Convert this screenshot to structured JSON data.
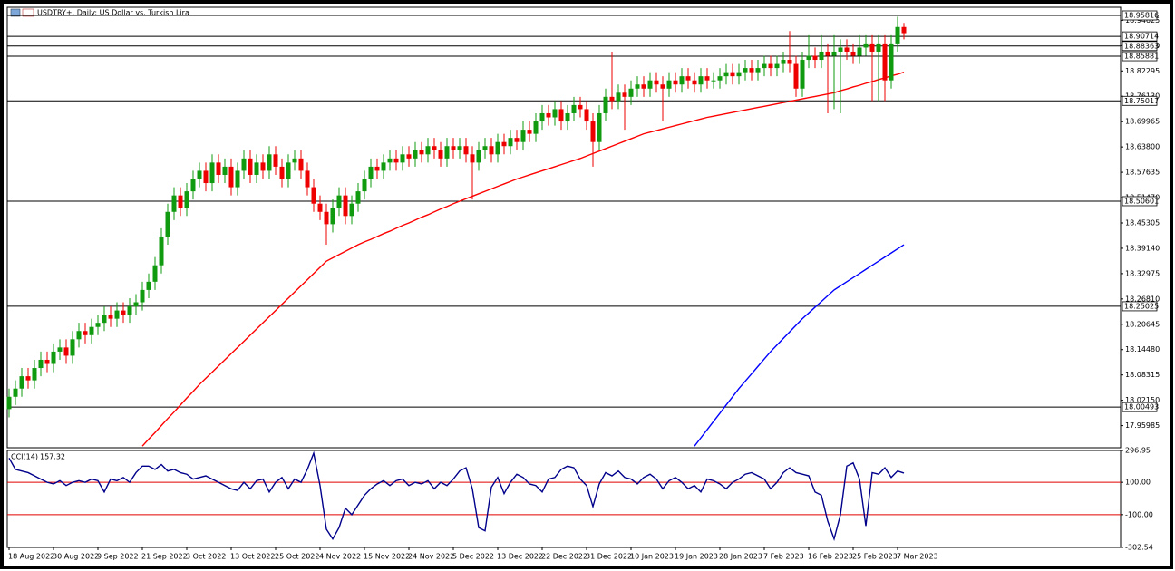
{
  "chart_data": [
    {
      "type": "candlestick",
      "title": "USDTRY+, Daily: US Dollar vs. Turkish Lira",
      "categories": [
        "18 Aug 2022",
        null,
        null,
        null,
        null,
        null,
        null,
        "30 Aug 2022",
        null,
        null,
        null,
        null,
        null,
        null,
        "9 Sep 2022",
        null,
        null,
        null,
        null,
        null,
        null,
        "21 Sep 2022",
        null,
        null,
        null,
        null,
        null,
        null,
        "3 Oct 2022",
        null,
        null,
        null,
        null,
        null,
        null,
        "13 Oct 2022",
        null,
        null,
        null,
        null,
        null,
        null,
        "25 Oct 2022",
        null,
        null,
        null,
        null,
        null,
        null,
        "4 Nov 2022",
        null,
        null,
        null,
        null,
        null,
        null,
        "15 Nov 2022",
        null,
        null,
        null,
        null,
        null,
        null,
        "24 Nov 2022",
        null,
        null,
        null,
        null,
        null,
        null,
        "5 Dec 2022",
        null,
        null,
        null,
        null,
        null,
        null,
        "13 Dec 2022",
        null,
        null,
        null,
        null,
        null,
        null,
        "22 Dec 2022",
        null,
        null,
        null,
        null,
        null,
        null,
        "31 Dec 2022",
        null,
        null,
        null,
        null,
        null,
        null,
        "10 Jan 2023",
        null,
        null,
        null,
        null,
        null,
        null,
        "19 Jan 2023",
        null,
        null,
        null,
        null,
        null,
        null,
        "28 Jan 2023",
        null,
        null,
        null,
        null,
        null,
        null,
        "7 Feb 2023",
        null,
        null,
        null,
        null,
        null,
        null,
        "16 Feb 2023",
        null,
        null,
        null,
        null,
        null,
        null,
        "25 Feb 2023",
        null,
        null,
        null,
        null,
        null,
        null,
        "7 Mar 2023",
        null
      ],
      "open": [
        18.0,
        18.03,
        18.05,
        18.08,
        18.07,
        18.1,
        18.12,
        18.11,
        18.14,
        18.15,
        18.13,
        18.17,
        18.19,
        18.18,
        18.2,
        18.21,
        18.23,
        18.22,
        18.24,
        18.23,
        18.25,
        18.26,
        18.29,
        18.31,
        18.35,
        18.42,
        18.48,
        18.52,
        18.49,
        18.53,
        18.56,
        18.58,
        18.55,
        18.6,
        18.57,
        18.59,
        18.54,
        18.58,
        18.61,
        18.57,
        18.6,
        18.58,
        18.62,
        18.59,
        18.56,
        18.6,
        18.61,
        18.58,
        18.54,
        18.5,
        18.48,
        18.45,
        18.49,
        18.52,
        18.47,
        18.5,
        18.53,
        18.56,
        18.59,
        18.58,
        18.6,
        18.61,
        18.6,
        18.62,
        18.61,
        18.63,
        18.62,
        18.64,
        18.63,
        18.61,
        18.64,
        18.63,
        18.64,
        18.62,
        18.6,
        18.63,
        18.64,
        18.62,
        18.65,
        18.64,
        18.66,
        18.65,
        18.68,
        18.67,
        18.7,
        18.72,
        18.71,
        18.73,
        18.7,
        18.72,
        18.74,
        18.73,
        18.7,
        18.65,
        18.72,
        18.76,
        18.75,
        18.77,
        18.76,
        18.78,
        18.79,
        18.78,
        18.8,
        18.79,
        18.78,
        18.8,
        18.79,
        18.81,
        18.8,
        18.79,
        18.81,
        18.8,
        18.8,
        18.81,
        18.82,
        18.81,
        18.82,
        18.83,
        18.82,
        18.83,
        18.84,
        18.83,
        18.84,
        18.85,
        18.84,
        18.78,
        18.85,
        18.86,
        18.85,
        18.87,
        18.86,
        18.87,
        18.88,
        18.87,
        18.86,
        18.88,
        18.89,
        18.87,
        18.89,
        18.8,
        18.89,
        18.93
      ],
      "high": [
        18.05,
        18.07,
        18.1,
        18.1,
        18.12,
        18.14,
        18.14,
        18.16,
        18.17,
        18.17,
        18.19,
        18.21,
        18.21,
        18.22,
        18.23,
        18.25,
        18.25,
        18.26,
        18.26,
        18.27,
        18.28,
        18.31,
        18.33,
        18.37,
        18.44,
        18.5,
        18.54,
        18.54,
        18.55,
        18.58,
        18.6,
        18.6,
        18.62,
        18.62,
        18.61,
        18.61,
        18.6,
        18.63,
        18.63,
        18.62,
        18.62,
        18.64,
        18.64,
        18.61,
        18.62,
        18.63,
        18.63,
        18.6,
        18.56,
        18.52,
        18.5,
        18.51,
        18.54,
        18.54,
        18.52,
        18.55,
        18.58,
        18.61,
        18.61,
        18.62,
        18.63,
        18.63,
        18.64,
        18.64,
        18.65,
        18.65,
        18.66,
        18.66,
        18.65,
        18.66,
        18.66,
        18.66,
        18.66,
        18.64,
        18.65,
        18.66,
        18.66,
        18.67,
        18.67,
        18.68,
        18.68,
        18.7,
        18.7,
        18.72,
        18.74,
        18.74,
        18.75,
        18.75,
        18.74,
        18.76,
        18.76,
        18.75,
        18.72,
        18.74,
        18.78,
        18.87,
        18.79,
        18.79,
        18.8,
        18.81,
        18.81,
        18.82,
        18.82,
        18.81,
        18.82,
        18.82,
        18.83,
        18.83,
        18.82,
        18.83,
        18.83,
        18.82,
        18.83,
        18.84,
        18.84,
        18.84,
        18.85,
        18.85,
        18.85,
        18.86,
        18.86,
        18.86,
        18.87,
        18.92,
        18.86,
        18.87,
        18.91,
        18.88,
        18.91,
        18.89,
        18.91,
        18.9,
        18.9,
        18.89,
        18.91,
        18.91,
        18.91,
        18.91,
        18.91,
        18.91,
        18.955,
        18.94
      ],
      "low": [
        17.98,
        18.01,
        18.03,
        18.05,
        18.05,
        18.08,
        18.09,
        18.09,
        18.12,
        18.11,
        18.11,
        18.15,
        18.16,
        18.16,
        18.18,
        18.19,
        18.2,
        18.2,
        18.21,
        18.21,
        18.23,
        18.24,
        18.27,
        18.29,
        18.33,
        18.4,
        18.46,
        18.47,
        18.47,
        18.51,
        18.54,
        18.53,
        18.53,
        18.55,
        18.55,
        18.52,
        18.52,
        18.56,
        18.55,
        18.55,
        18.56,
        18.56,
        18.57,
        18.54,
        18.54,
        18.58,
        18.56,
        18.52,
        18.48,
        18.46,
        18.4,
        18.43,
        18.47,
        18.45,
        18.45,
        18.48,
        18.51,
        18.54,
        18.56,
        18.56,
        18.58,
        18.58,
        18.58,
        18.59,
        18.59,
        18.6,
        18.6,
        18.61,
        18.59,
        18.59,
        18.61,
        18.61,
        18.6,
        18.51,
        18.58,
        18.61,
        18.6,
        18.6,
        18.62,
        18.62,
        18.63,
        18.63,
        18.65,
        18.65,
        18.68,
        18.69,
        18.69,
        18.68,
        18.68,
        18.7,
        18.71,
        18.68,
        18.59,
        18.63,
        18.7,
        18.73,
        18.73,
        18.68,
        18.74,
        18.76,
        18.76,
        18.76,
        18.77,
        18.7,
        18.76,
        18.77,
        18.77,
        18.78,
        18.77,
        18.77,
        18.78,
        18.78,
        18.78,
        18.79,
        18.79,
        18.79,
        18.8,
        18.8,
        18.8,
        18.81,
        18.81,
        18.81,
        18.82,
        18.82,
        18.76,
        18.76,
        18.83,
        18.83,
        18.83,
        18.72,
        18.73,
        18.72,
        18.85,
        18.84,
        18.84,
        18.86,
        18.75,
        18.75,
        18.75,
        18.78,
        18.87,
        18.9
      ],
      "close": [
        18.03,
        18.05,
        18.08,
        18.07,
        18.1,
        18.12,
        18.11,
        18.14,
        18.15,
        18.13,
        18.17,
        18.19,
        18.18,
        18.2,
        18.21,
        18.23,
        18.22,
        18.24,
        18.23,
        18.25,
        18.26,
        18.29,
        18.31,
        18.35,
        18.42,
        18.48,
        18.52,
        18.49,
        18.53,
        18.56,
        18.58,
        18.55,
        18.6,
        18.57,
        18.59,
        18.54,
        18.58,
        18.61,
        18.57,
        18.6,
        18.58,
        18.62,
        18.59,
        18.56,
        18.6,
        18.61,
        18.58,
        18.54,
        18.5,
        18.48,
        18.45,
        18.49,
        18.52,
        18.47,
        18.5,
        18.53,
        18.56,
        18.59,
        18.58,
        18.6,
        18.61,
        18.6,
        18.62,
        18.61,
        18.63,
        18.62,
        18.64,
        18.63,
        18.61,
        18.64,
        18.63,
        18.64,
        18.62,
        18.6,
        18.63,
        18.64,
        18.62,
        18.65,
        18.64,
        18.66,
        18.65,
        18.68,
        18.67,
        18.7,
        18.72,
        18.71,
        18.73,
        18.7,
        18.72,
        18.74,
        18.73,
        18.7,
        18.65,
        18.72,
        18.76,
        18.75,
        18.77,
        18.76,
        18.78,
        18.79,
        18.78,
        18.8,
        18.79,
        18.78,
        18.8,
        18.79,
        18.81,
        18.8,
        18.79,
        18.81,
        18.8,
        18.8,
        18.81,
        18.82,
        18.81,
        18.82,
        18.83,
        18.82,
        18.83,
        18.84,
        18.83,
        18.84,
        18.85,
        18.84,
        18.78,
        18.85,
        18.86,
        18.85,
        18.87,
        18.86,
        18.87,
        18.88,
        18.87,
        18.86,
        18.88,
        18.89,
        18.87,
        18.89,
        18.8,
        18.89,
        18.93,
        18.915
      ],
      "up_color": "#0f9a0f",
      "down_color": "#ee0000",
      "series": [
        {
          "color": "#ff0000",
          "values": [
            null,
            null,
            null,
            null,
            null,
            null,
            null,
            null,
            null,
            null,
            null,
            null,
            null,
            null,
            null,
            null,
            null,
            null,
            null,
            null,
            null,
            17.91,
            17.927,
            17.943,
            17.96,
            17.977,
            17.993,
            18.01,
            18.027,
            18.043,
            18.06,
            18.075,
            18.09,
            18.105,
            18.12,
            18.135,
            18.15,
            18.165,
            18.18,
            18.195,
            18.21,
            18.225,
            18.24,
            18.255,
            18.27,
            18.285,
            18.3,
            18.315,
            18.33,
            18.345,
            18.36,
            18.368,
            18.376,
            18.384,
            18.392,
            18.4,
            18.407,
            18.413,
            18.42,
            18.427,
            18.433,
            18.44,
            18.447,
            18.453,
            18.46,
            18.467,
            18.473,
            18.48,
            18.487,
            18.493,
            18.5,
            18.506,
            18.512,
            18.518,
            18.524,
            18.53,
            18.536,
            18.542,
            18.548,
            18.554,
            18.56,
            18.565,
            18.57,
            18.575,
            18.58,
            18.585,
            18.59,
            18.595,
            18.6,
            18.605,
            18.61,
            18.616,
            18.622,
            18.628,
            18.634,
            18.64,
            18.646,
            18.652,
            18.658,
            18.664,
            18.67,
            18.674,
            18.678,
            18.682,
            18.686,
            18.69,
            18.694,
            18.698,
            18.702,
            18.706,
            18.71,
            18.713,
            18.716,
            18.719,
            18.722,
            18.725,
            18.728,
            18.731,
            18.734,
            18.737,
            18.74,
            18.743,
            18.746,
            18.749,
            18.752,
            18.755,
            18.758,
            18.761,
            18.764,
            18.767,
            18.77,
            18.775,
            18.779,
            18.784,
            18.788,
            18.793,
            18.797,
            18.802,
            18.806,
            18.811,
            18.815,
            18.82
          ]
        },
        {
          "color": "#0000ff",
          "values": [
            null,
            null,
            null,
            null,
            null,
            null,
            null,
            null,
            null,
            null,
            null,
            null,
            null,
            null,
            null,
            null,
            null,
            null,
            null,
            null,
            null,
            null,
            null,
            null,
            null,
            null,
            null,
            null,
            null,
            null,
            null,
            null,
            null,
            null,
            null,
            null,
            null,
            null,
            null,
            null,
            null,
            null,
            null,
            null,
            null,
            null,
            null,
            null,
            null,
            null,
            null,
            null,
            null,
            null,
            null,
            null,
            null,
            null,
            null,
            null,
            null,
            null,
            null,
            null,
            null,
            null,
            null,
            null,
            null,
            null,
            null,
            null,
            null,
            null,
            null,
            null,
            null,
            null,
            null,
            null,
            null,
            null,
            null,
            null,
            null,
            null,
            null,
            null,
            null,
            null,
            null,
            null,
            null,
            null,
            null,
            null,
            null,
            null,
            null,
            null,
            null,
            null,
            null,
            null,
            null,
            null,
            null,
            null,
            17.91,
            17.93,
            17.95,
            17.97,
            17.99,
            18.01,
            18.03,
            18.05,
            18.068,
            18.086,
            18.104,
            18.122,
            18.14,
            18.156,
            18.172,
            18.188,
            18.204,
            18.22,
            18.234,
            18.248,
            18.262,
            18.276,
            18.29,
            18.3,
            18.31,
            18.32,
            18.33,
            18.34,
            18.35,
            18.36,
            18.37,
            18.38,
            18.39,
            18.4
          ]
        }
      ],
      "hlines": [
        18.95816,
        18.90714,
        18.88363,
        18.85881,
        18.75017,
        18.50601,
        18.25025,
        18.00493
      ],
      "hline_color": "#000000",
      "ylim": [
        17.906,
        18.978
      ],
      "yticks": [
        17.95985,
        {
          "value": 18.0215,
          "label": "18.02150"
        },
        18.08315,
        {
          "value": 18.1448,
          "label": "18.14480"
        },
        18.20645,
        {
          "value": 18.2681,
          "label": "18.26810"
        },
        18.32975,
        {
          "value": 18.3914,
          "label": "18.39140"
        },
        18.45305,
        {
          "value": 18.5147,
          "label": "18.51470"
        },
        18.57635,
        {
          "value": 18.638,
          "label": "18.63800"
        },
        18.69965,
        {
          "value": 18.7613,
          "label": "18.76130"
        },
        18.82295,
        {
          "value": 18.8846,
          "label": "18.88460"
        },
        18.94625
      ]
    },
    {
      "type": "line",
      "title": "CCI(14)",
      "color": "#00008b",
      "values": [
        250,
        180,
        170,
        160,
        140,
        120,
        100,
        90,
        110,
        80,
        100,
        110,
        100,
        120,
        110,
        40,
        120,
        110,
        130,
        100,
        160,
        200,
        200,
        180,
        210,
        170,
        180,
        160,
        150,
        120,
        130,
        140,
        120,
        100,
        80,
        60,
        50,
        100,
        60,
        110,
        120,
        40,
        100,
        130,
        60,
        120,
        100,
        180,
        280,
        80,
        -190,
        -250,
        -180,
        -60,
        -100,
        -40,
        20,
        60,
        90,
        110,
        80,
        110,
        120,
        80,
        100,
        90,
        110,
        60,
        100,
        80,
        120,
        170,
        190,
        60,
        -180,
        -200,
        70,
        130,
        30,
        100,
        150,
        130,
        90,
        80,
        40,
        120,
        130,
        180,
        200,
        190,
        120,
        80,
        -50,
        90,
        160,
        140,
        170,
        130,
        120,
        90,
        130,
        150,
        120,
        60,
        110,
        130,
        100,
        60,
        80,
        40,
        120,
        110,
        90,
        60,
        100,
        120,
        150,
        160,
        140,
        120,
        60,
        100,
        160,
        190,
        160,
        150,
        140,
        40,
        20,
        -140,
        -250,
        -100,
        200,
        220,
        120,
        -170,
        160,
        150,
        190,
        130,
        170,
        157.32
      ],
      "hlines": [
        100,
        -100
      ],
      "hline_color": "#e00000",
      "ylim": [
        -302.54,
        296.95
      ],
      "yticks": [
        296.95,
        {
          "value": 100,
          "label": "100.00"
        },
        {
          "value": -100,
          "label": "-100.00"
        },
        -302.54
      ]
    }
  ]
}
